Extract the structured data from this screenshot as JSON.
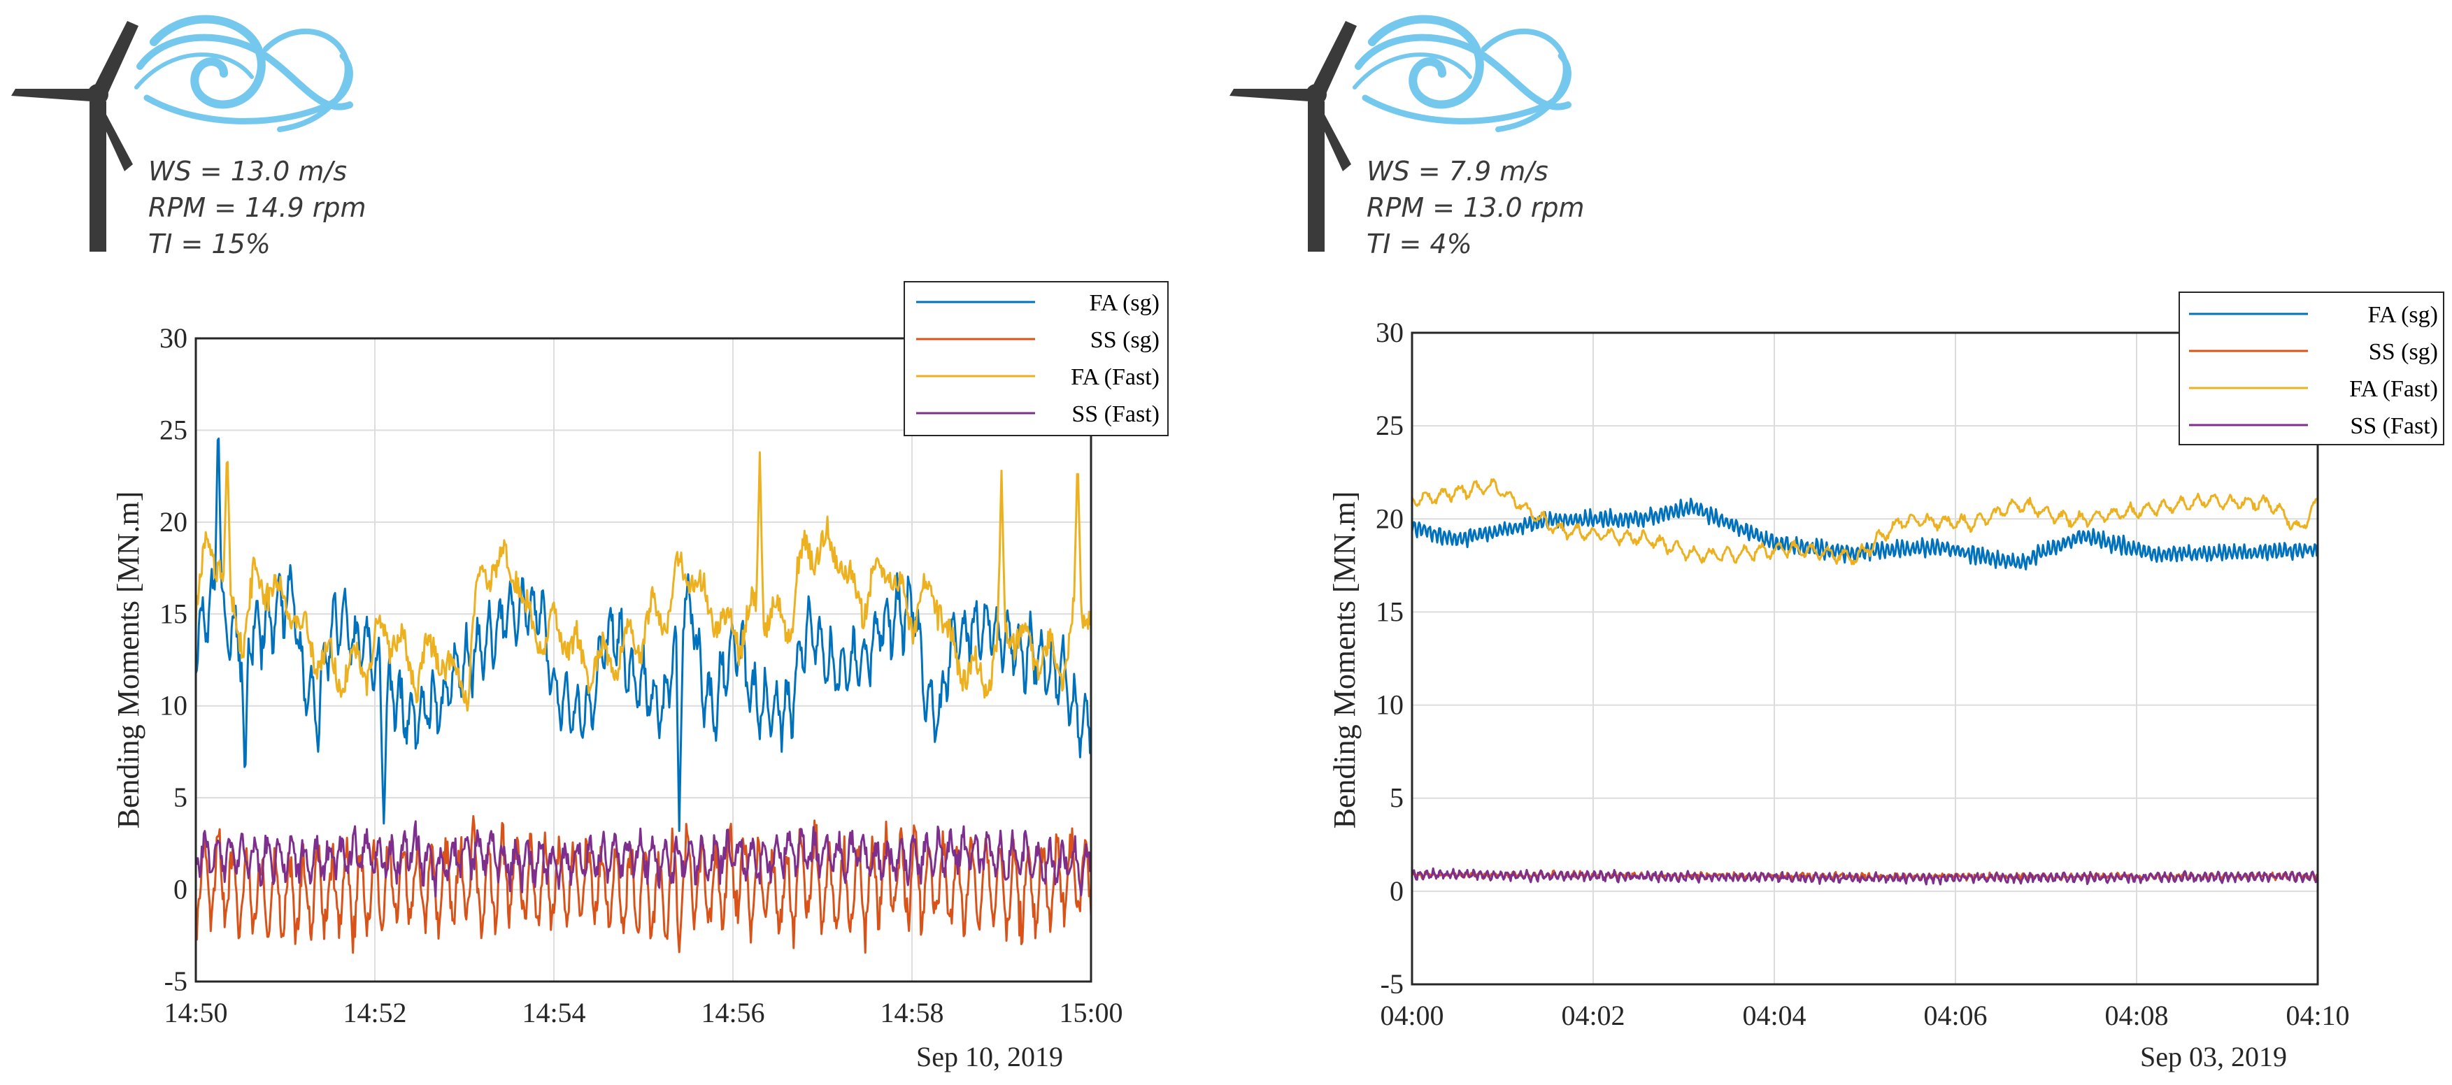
{
  "colors": {
    "fa_sg": "#0072BD",
    "ss_sg": "#D95319",
    "fa_fast": "#EDB120",
    "ss_fast": "#7E2F8E",
    "wave": "#74C8EE",
    "turbine": "#3a3a3a"
  },
  "chart_data": [
    {
      "type": "line",
      "conditions": [
        "WS = 13.0 m/s",
        "RPM = 14.9 rpm",
        "TI = 15%"
      ],
      "ylabel": "Bending Moments [MN.m]",
      "date_label": "Sep 10, 2019",
      "x_ticks": [
        "14:50",
        "14:52",
        "14:54",
        "14:56",
        "14:58",
        "15:00"
      ],
      "xlim_minutes": [
        0,
        10
      ],
      "ylim": [
        -5,
        30
      ],
      "y_ticks": [
        -5,
        0,
        5,
        10,
        15,
        20,
        25,
        30
      ],
      "grid": true,
      "legend_position": "top-right",
      "series": [
        {
          "name": "FA (sg)",
          "color_key": "fa_sg",
          "mean": 12.5,
          "amp": 3.8,
          "osc_amp": 1.4,
          "osc_freq": 18,
          "spikes": [
            [
              0.25,
              26.2
            ],
            [
              0.55,
              5.4
            ],
            [
              2.1,
              3.6
            ],
            [
              5.4,
              3.2
            ]
          ],
          "seed": 11
        },
        {
          "name": "SS (sg)",
          "color_key": "ss_sg",
          "mean": 0.3,
          "amp": 0.7,
          "osc_amp": 2.1,
          "osc_freq": 14,
          "spikes": [
            [
              3.1,
              4.0
            ],
            [
              5.4,
              -3.4
            ]
          ],
          "seed": 23
        },
        {
          "name": "FA (Fast)",
          "color_key": "fa_fast",
          "mean": 15.0,
          "amp": 4.2,
          "osc_amp": 1.0,
          "osc_freq": 8,
          "spikes": [
            [
              0.35,
              24.3
            ],
            [
              6.3,
              23.8
            ],
            [
              9.0,
              22.8
            ],
            [
              9.85,
              23.7
            ]
          ],
          "seed": 37
        },
        {
          "name": "SS (Fast)",
          "color_key": "ss_fast",
          "mean": 1.7,
          "amp": 0.5,
          "osc_amp": 0.9,
          "osc_freq": 16,
          "spikes": [],
          "seed": 41
        }
      ]
    },
    {
      "type": "line",
      "conditions": [
        "WS = 7.9 m/s",
        "RPM = 13.0 rpm",
        "TI = 4%"
      ],
      "ylabel": "Bending Moments [MN.m]",
      "date_label": "Sep 03, 2019",
      "x_ticks": [
        "04:00",
        "04:02",
        "04:04",
        "04:06",
        "04:08",
        "04:10"
      ],
      "xlim_minutes": [
        0,
        10
      ],
      "ylim": [
        -5,
        30
      ],
      "y_ticks": [
        -5,
        0,
        5,
        10,
        15,
        20,
        25,
        30
      ],
      "grid": true,
      "legend_position": "top-right",
      "series": [
        {
          "name": "FA (sg)",
          "color_key": "fa_sg",
          "trend": [
            [
              0,
              19.6
            ],
            [
              0.5,
              18.9
            ],
            [
              1.5,
              19.9
            ],
            [
              2.5,
              20.0
            ],
            [
              3.1,
              20.6
            ],
            [
              4.0,
              18.7
            ],
            [
              4.8,
              18.2
            ],
            [
              5.8,
              18.5
            ],
            [
              6.7,
              17.6
            ],
            [
              7.4,
              19.1
            ],
            [
              8.2,
              18.1
            ],
            [
              9.2,
              18.2
            ],
            [
              10,
              18.3
            ]
          ],
          "osc_amp": 0.35,
          "osc_freq": 40,
          "seed": 5
        },
        {
          "name": "SS (sg)",
          "color_key": "ss_sg",
          "trend": [
            [
              0,
              0.9
            ],
            [
              5,
              0.8
            ],
            [
              10,
              0.8
            ]
          ],
          "osc_amp": 0.1,
          "osc_freq": 30,
          "seed": 7
        },
        {
          "name": "FA (Fast)",
          "color_key": "fa_fast",
          "trend": [
            [
              0,
              21.0
            ],
            [
              0.9,
              21.8
            ],
            [
              1.6,
              19.4
            ],
            [
              2.6,
              18.9
            ],
            [
              3.2,
              18.0
            ],
            [
              4.2,
              18.4
            ],
            [
              4.9,
              17.9
            ],
            [
              5.4,
              19.9
            ],
            [
              6.2,
              19.8
            ],
            [
              6.7,
              20.8
            ],
            [
              7.3,
              19.9
            ],
            [
              8.1,
              20.5
            ],
            [
              8.8,
              21.0
            ],
            [
              9.5,
              20.8
            ],
            [
              9.8,
              19.4
            ],
            [
              10,
              20.9
            ]
          ],
          "osc_amp": 0.3,
          "osc_freq": 12,
          "seed": 9
        },
        {
          "name": "SS (Fast)",
          "color_key": "ss_fast",
          "trend": [
            [
              0,
              0.9
            ],
            [
              5,
              0.7
            ],
            [
              10,
              0.8
            ]
          ],
          "osc_amp": 0.18,
          "osc_freq": 30,
          "seed": 13
        }
      ]
    }
  ]
}
